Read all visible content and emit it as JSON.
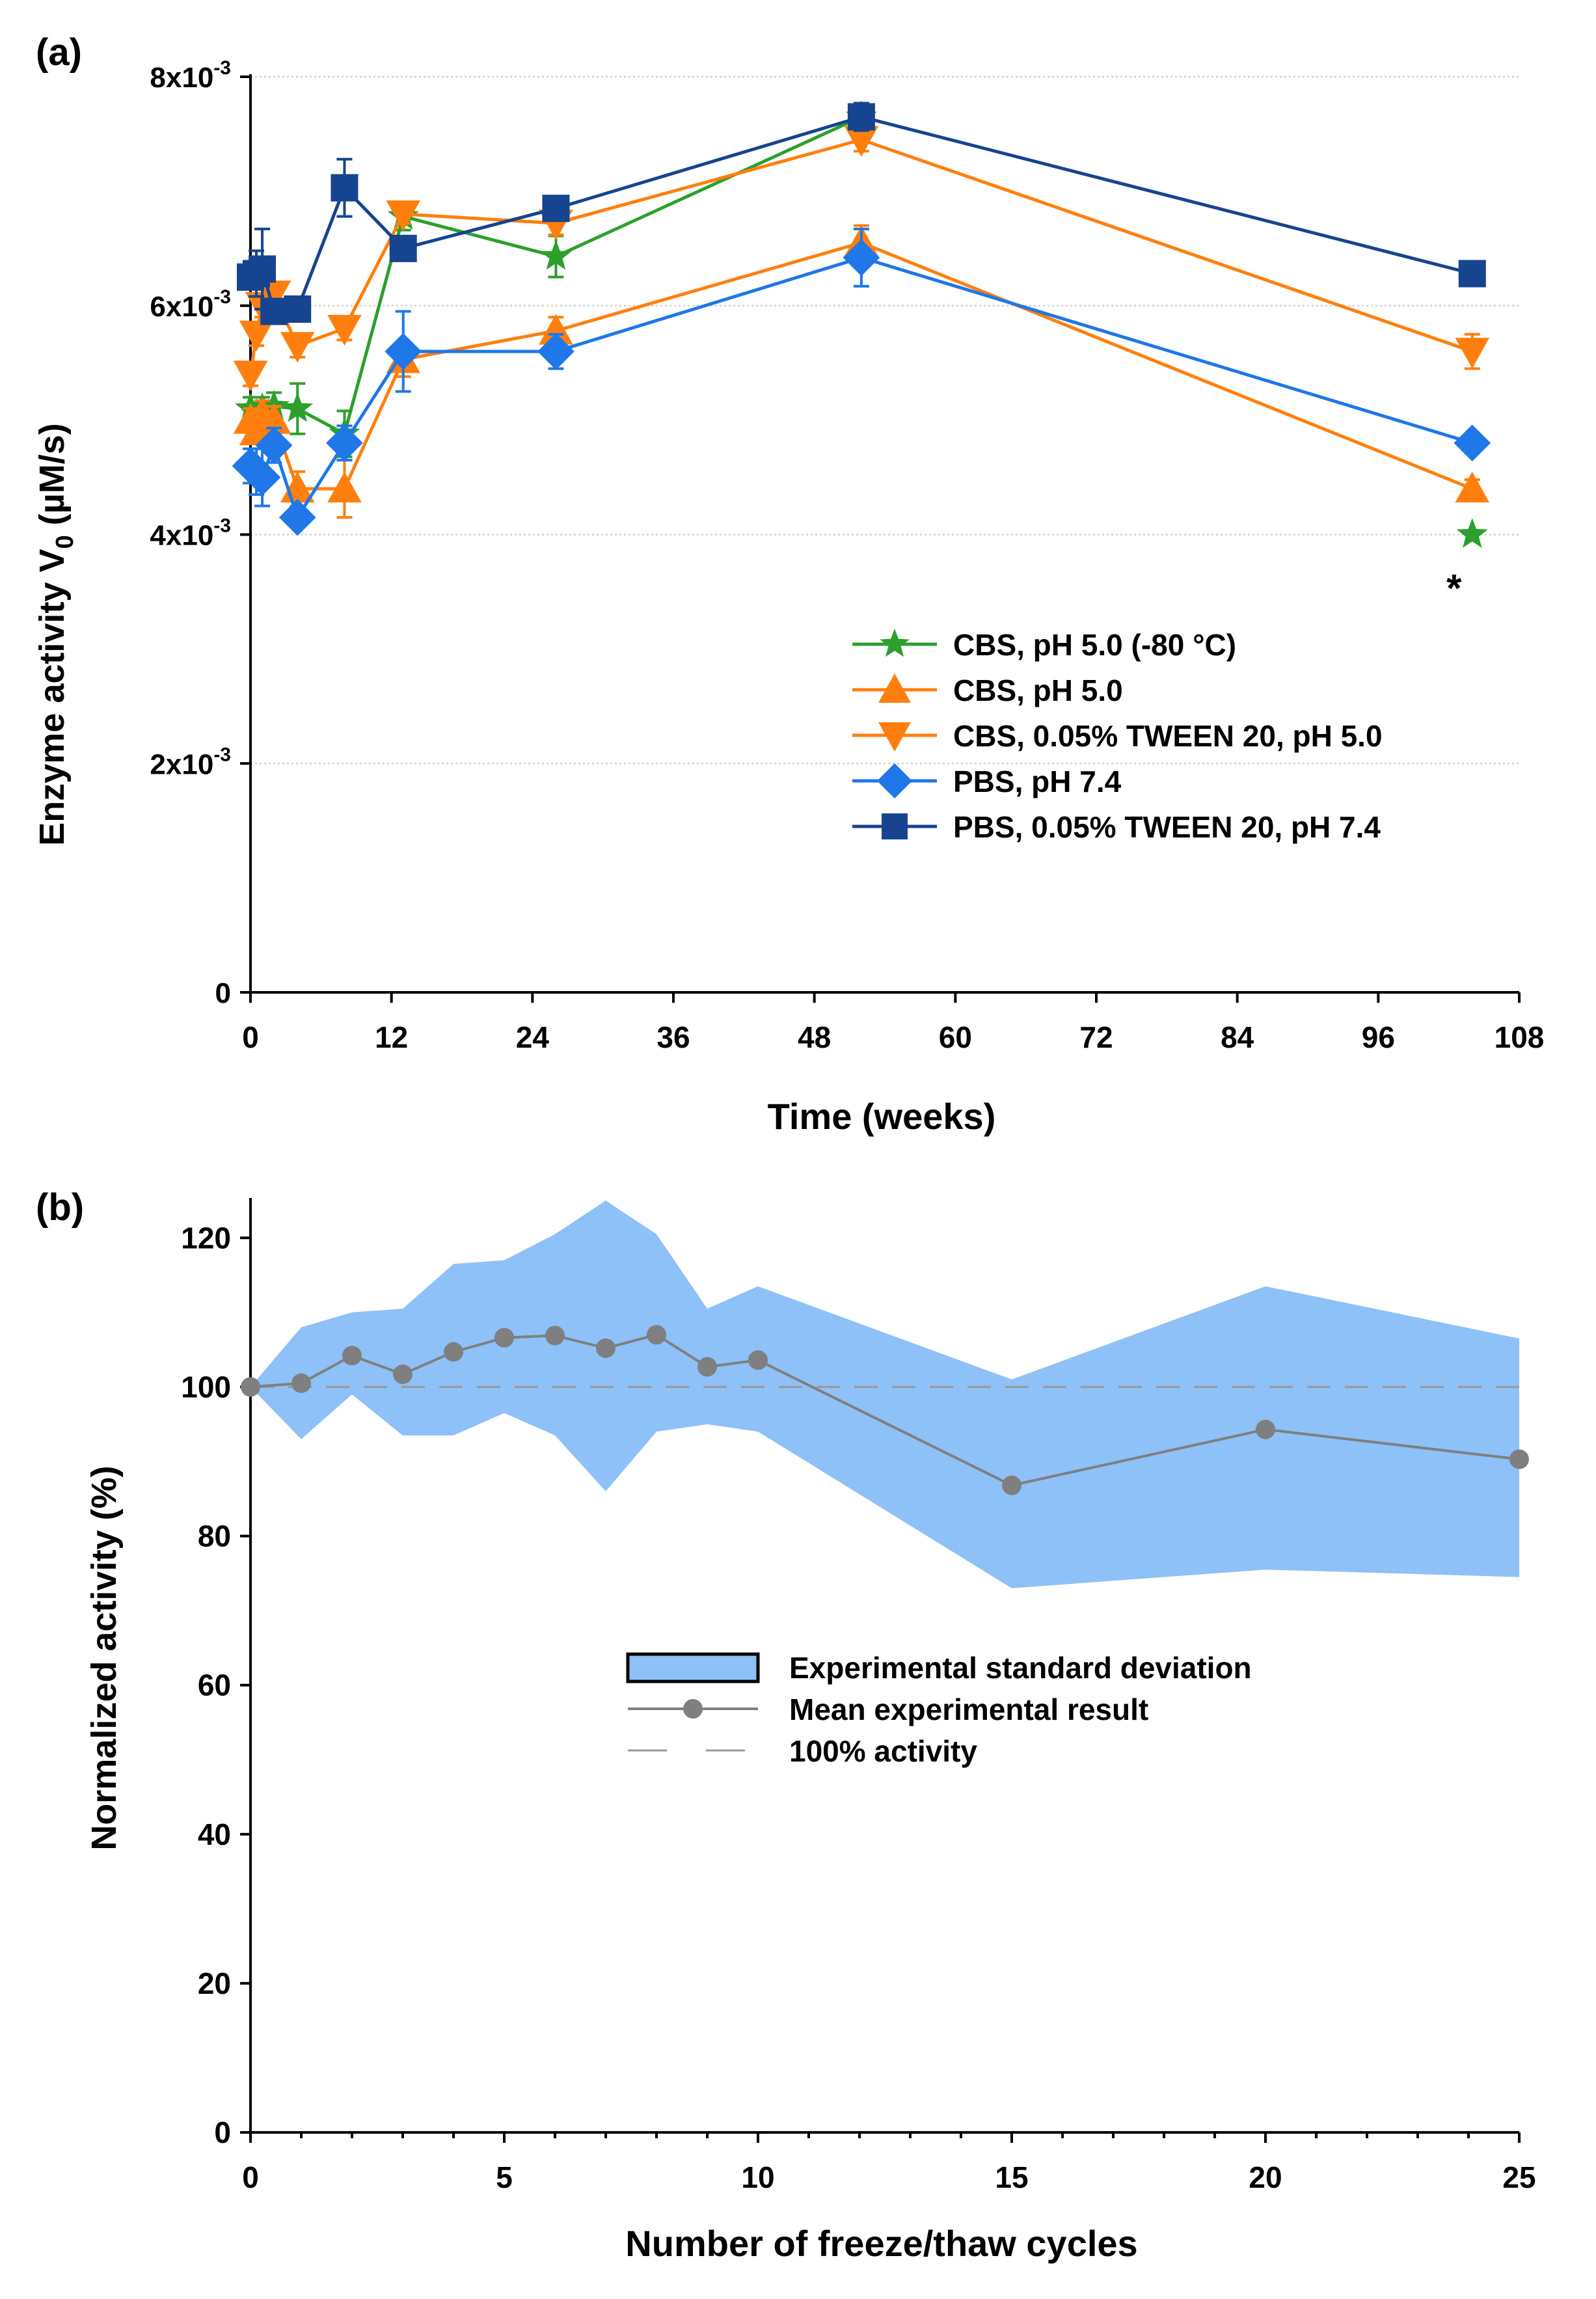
{
  "chart_data": [
    {
      "type": "line",
      "panel_label": "(a)",
      "title": "",
      "xlabel": "Time (weeks)",
      "ylabel_main": "Enzyme activity V",
      "ylabel_sub": "0",
      "ylabel_unit": " (µM/s)",
      "xlim": [
        0,
        108
      ],
      "ylim": [
        0,
        0.008
      ],
      "xticks": [
        0,
        12,
        24,
        36,
        48,
        60,
        72,
        84,
        96,
        108
      ],
      "yticks": [
        {
          "value": 0,
          "base": "0",
          "exp": ""
        },
        {
          "value": 0.002,
          "base": "2x10",
          "exp": "-3"
        },
        {
          "value": 0.004,
          "base": "4x10",
          "exp": "-3"
        },
        {
          "value": 0.006,
          "base": "6x10",
          "exp": "-3"
        },
        {
          "value": 0.008,
          "base": "8x10",
          "exp": "-3"
        }
      ],
      "grid": "horizontal dotted",
      "legend_position": "center-right",
      "annotation": {
        "text": "*",
        "x": 104,
        "y": 0.0037
      },
      "series": [
        {
          "name": "CBS, pH 5.0 (-80 °C)",
          "color": "#2ca02c",
          "marker": "star",
          "x": [
            0,
            0.5,
            1,
            2,
            4,
            8,
            13,
            26,
            52
          ],
          "y": [
            0.0051,
            0.00505,
            0.0051,
            0.00512,
            0.0051,
            0.00488,
            0.00678,
            0.00643,
            0.00765
          ],
          "err": [
            0.0001,
            0.0001,
            0.0001,
            0.00012,
            0.00022,
            0.0002,
            0.00012,
            0.00018,
            0.00012
          ],
          "extra_points": [
            {
              "x": 104,
              "y": 0.004
            }
          ]
        },
        {
          "name": "CBS, pH 5.0",
          "color": "#ff7f0e",
          "marker": "triangle-up",
          "x": [
            0,
            0.5,
            1,
            2,
            4,
            8,
            13,
            26,
            52,
            104
          ],
          "y": [
            0.005,
            0.0049,
            0.00505,
            0.005,
            0.0044,
            0.0044,
            0.00553,
            0.00578,
            0.00655,
            0.0044
          ],
          "err": [
            0.0001,
            0.0001,
            0.00012,
            0.00012,
            0.00015,
            0.00025,
            0.00015,
            0.00012,
            0.00015,
            8e-05
          ]
        },
        {
          "name": "CBS, 0.05% TWEEN 20, pH 5.0",
          "color": "#ff7f0e",
          "marker": "triangle-down",
          "x": [
            0,
            0.5,
            1,
            2,
            4,
            8,
            13,
            26,
            52,
            104
          ],
          "y": [
            0.0054,
            0.00575,
            0.006,
            0.0061,
            0.00565,
            0.0058,
            0.0068,
            0.00672,
            0.00745,
            0.0056
          ],
          "err": [
            0.0001,
            0.0001,
            0.0001,
            0.0001,
            0.0001,
            0.0001,
            8e-05,
            0.0001,
            0.0001,
            0.00015
          ]
        },
        {
          "name": "PBS, pH 7.4",
          "color": "#1f77e8",
          "marker": "diamond",
          "x": [
            0,
            0.5,
            1,
            2,
            4,
            8,
            13,
            26,
            52,
            104
          ],
          "y": [
            0.0046,
            0.00455,
            0.0045,
            0.00478,
            0.00415,
            0.0048,
            0.0056,
            0.0056,
            0.00642,
            0.0048
          ],
          "err": [
            0.00015,
            0.0002,
            0.00025,
            0.00015,
            8e-05,
            0.00015,
            0.00035,
            0.00015,
            0.00025,
            8e-05
          ]
        },
        {
          "name": "PBS, 0.05% TWEEN 20, pH 7.4",
          "color": "#16448f",
          "marker": "square",
          "x": [
            0,
            0.5,
            1,
            2,
            4,
            8,
            13,
            26,
            52,
            104
          ],
          "y": [
            0.00625,
            0.00628,
            0.00632,
            0.00595,
            0.00597,
            0.00703,
            0.0065,
            0.00685,
            0.00765,
            0.00628
          ],
          "err": [
            0.0001,
            0.0002,
            0.00035,
            0.0001,
            0.0001,
            0.00025,
            0.0001,
            8e-05,
            0.00012,
            8e-05
          ]
        }
      ]
    },
    {
      "type": "line",
      "panel_label": "(b)",
      "title": "",
      "xlabel": "Number of freeze/thaw cycles",
      "ylabel": "Normalized activity (%)",
      "xlim": [
        0,
        25
      ],
      "ylim": [
        0,
        125
      ],
      "xticks": [
        0,
        5,
        10,
        15,
        20,
        25
      ],
      "yticks": [
        0,
        20,
        40,
        60,
        80,
        100,
        120
      ],
      "grid": "none",
      "legend_position": "center",
      "reference_line": {
        "y": 100,
        "name": "100% activity",
        "color": "#999999",
        "style": "dashed"
      },
      "band": {
        "name": "Experimental standard deviation",
        "color": "#8ec1f7",
        "x": [
          0,
          1,
          2,
          3,
          4,
          5,
          6,
          7,
          8,
          9,
          10,
          15,
          20,
          25
        ],
        "upper": [
          100,
          108,
          110,
          110.5,
          116.5,
          117,
          120.5,
          125,
          120.5,
          110.5,
          113.5,
          101,
          113.5,
          106.5
        ],
        "lower": [
          100,
          93,
          99,
          93.5,
          93.5,
          96.5,
          93.5,
          86,
          94,
          95,
          94,
          73,
          75.5,
          74.5
        ]
      },
      "series": [
        {
          "name": "Mean experimental result",
          "color": "#7f7f7f",
          "marker": "circle",
          "x": [
            0,
            1,
            2,
            3,
            4,
            5,
            6,
            7,
            8,
            9,
            10,
            15,
            20,
            25
          ],
          "y": [
            100,
            100.5,
            104.2,
            101.7,
            104.7,
            106.6,
            106.9,
            105.2,
            107,
            102.7,
            103.6,
            86.8,
            94.3,
            90.3
          ]
        }
      ]
    }
  ]
}
